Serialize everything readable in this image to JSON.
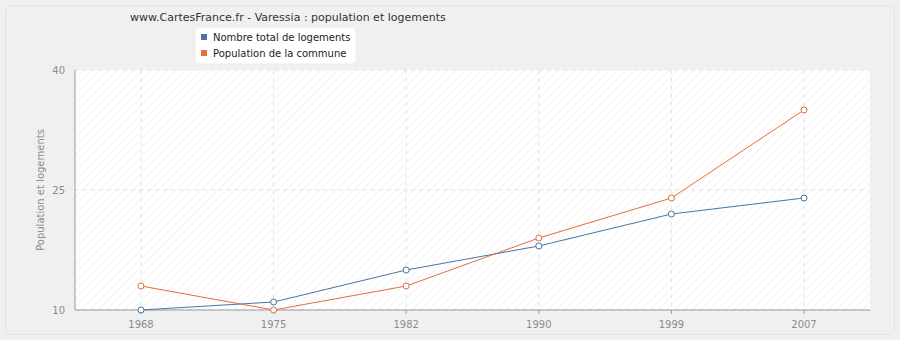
{
  "chart_data": {
    "type": "line",
    "title": "www.CartesFrance.fr - Varessia : population et logements",
    "y_label": "Population et logements",
    "categories": [
      "1968",
      "1975",
      "1982",
      "1990",
      "1999",
      "2007"
    ],
    "series": [
      {
        "name": "Nombre total de logements",
        "color": "#4a73a3",
        "values": [
          10,
          11,
          15,
          18,
          22,
          24
        ]
      },
      {
        "name": "Population de la commune",
        "color": "#e0703c",
        "values": [
          13,
          10,
          13,
          19,
          24,
          35
        ]
      }
    ],
    "ylim": [
      10,
      40
    ],
    "yticks": [
      10,
      25,
      40
    ],
    "grid": true,
    "legend": "top",
    "marker": "circle"
  }
}
